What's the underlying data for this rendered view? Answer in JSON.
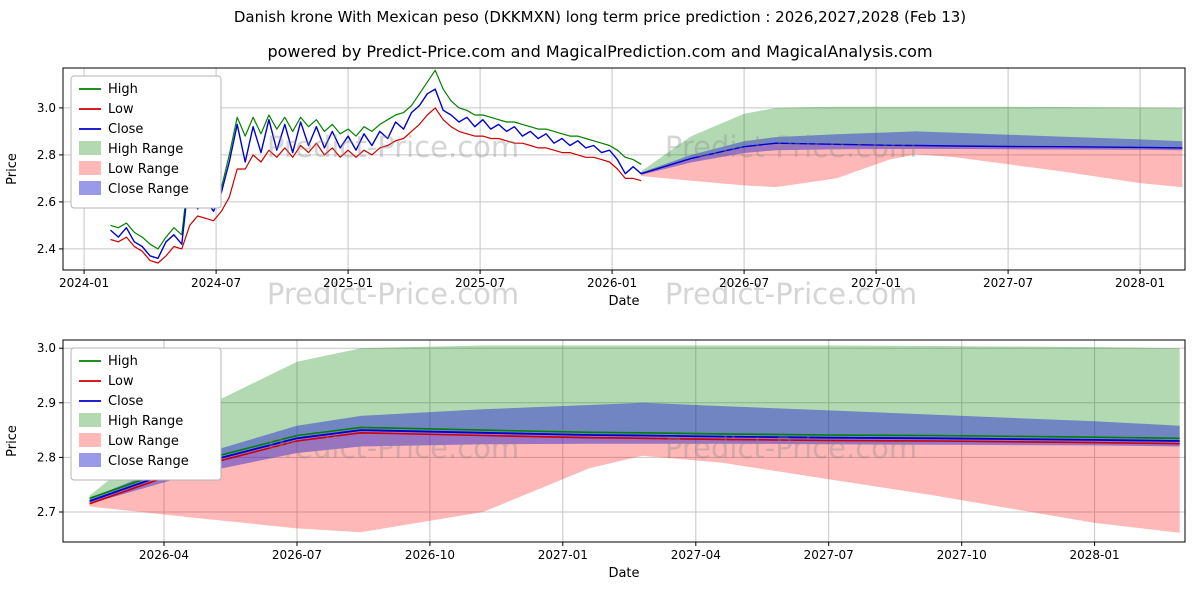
{
  "title": "Danish krone With Mexican peso (DKKMXN) long term price prediction : 2026,2027,2028 (Feb 13)",
  "subtitle": "powered by Predict-Price.com and MagicalPrediction.com and MagicalAnalysis.com",
  "watermark": "Predict-Price.com",
  "colors": {
    "high": "#008000",
    "low": "#cc0000",
    "close": "#0000cc",
    "high_range": "rgba(0,128,0,0.30)",
    "low_range": "rgba(255,0,0,0.28)",
    "close_range": "rgba(30,30,210,0.45)",
    "grid": "#c6c6c6",
    "spine": "#000000",
    "legend_border": "#b5b5b5"
  },
  "chart_data": {
    "type": "line",
    "legend": [
      {
        "label": "High",
        "type": "line",
        "color": "#008000"
      },
      {
        "label": "Low",
        "type": "line",
        "color": "#cc0000"
      },
      {
        "label": "Close",
        "type": "line",
        "color": "#0000cc"
      },
      {
        "label": "High Range",
        "type": "patch",
        "color": "rgba(0,128,0,0.30)"
      },
      {
        "label": "Low Range",
        "type": "patch",
        "color": "rgba(255,0,0,0.28)"
      },
      {
        "label": "Close Range",
        "type": "patch",
        "color": "rgba(30,30,210,0.45)"
      }
    ],
    "history": {
      "columns": [
        "x",
        "high",
        "low",
        "close"
      ],
      "points": [
        [
          2024.1,
          2.5,
          2.44,
          2.48
        ],
        [
          2024.13,
          2.49,
          2.43,
          2.45
        ],
        [
          2024.16,
          2.51,
          2.45,
          2.49
        ],
        [
          2024.19,
          2.47,
          2.41,
          2.43
        ],
        [
          2024.22,
          2.45,
          2.39,
          2.41
        ],
        [
          2024.25,
          2.42,
          2.35,
          2.37
        ],
        [
          2024.28,
          2.4,
          2.34,
          2.36
        ],
        [
          2024.31,
          2.45,
          2.37,
          2.43
        ],
        [
          2024.34,
          2.49,
          2.41,
          2.46
        ],
        [
          2024.37,
          2.46,
          2.4,
          2.42
        ],
        [
          2024.4,
          2.76,
          2.5,
          2.73
        ],
        [
          2024.43,
          2.68,
          2.54,
          2.57
        ],
        [
          2024.46,
          2.63,
          2.53,
          2.61
        ],
        [
          2024.49,
          2.62,
          2.52,
          2.56
        ],
        [
          2024.52,
          2.66,
          2.56,
          2.64
        ],
        [
          2024.55,
          2.8,
          2.62,
          2.77
        ],
        [
          2024.58,
          2.96,
          2.74,
          2.93
        ],
        [
          2024.61,
          2.88,
          2.74,
          2.77
        ],
        [
          2024.64,
          2.96,
          2.8,
          2.92
        ],
        [
          2024.67,
          2.89,
          2.77,
          2.81
        ],
        [
          2024.7,
          2.97,
          2.82,
          2.95
        ],
        [
          2024.73,
          2.91,
          2.79,
          2.82
        ],
        [
          2024.76,
          2.96,
          2.83,
          2.93
        ],
        [
          2024.79,
          2.9,
          2.79,
          2.81
        ],
        [
          2024.82,
          2.96,
          2.84,
          2.94
        ],
        [
          2024.85,
          2.92,
          2.81,
          2.84
        ],
        [
          2024.88,
          2.95,
          2.85,
          2.92
        ],
        [
          2024.91,
          2.9,
          2.8,
          2.83
        ],
        [
          2024.94,
          2.93,
          2.83,
          2.9
        ],
        [
          2024.97,
          2.89,
          2.79,
          2.83
        ],
        [
          2025.0,
          2.91,
          2.82,
          2.88
        ],
        [
          2025.03,
          2.88,
          2.79,
          2.82
        ],
        [
          2025.06,
          2.92,
          2.82,
          2.89
        ],
        [
          2025.09,
          2.9,
          2.8,
          2.84
        ],
        [
          2025.12,
          2.93,
          2.83,
          2.9
        ],
        [
          2025.15,
          2.95,
          2.84,
          2.87
        ],
        [
          2025.18,
          2.97,
          2.86,
          2.94
        ],
        [
          2025.21,
          2.98,
          2.87,
          2.91
        ],
        [
          2025.24,
          3.01,
          2.9,
          2.98
        ],
        [
          2025.27,
          3.06,
          2.93,
          3.01
        ],
        [
          2025.3,
          3.11,
          2.97,
          3.06
        ],
        [
          2025.33,
          3.16,
          3.0,
          3.08
        ],
        [
          2025.36,
          3.08,
          2.95,
          2.99
        ],
        [
          2025.39,
          3.03,
          2.92,
          2.97
        ],
        [
          2025.42,
          3.0,
          2.9,
          2.94
        ],
        [
          2025.45,
          2.99,
          2.89,
          2.96
        ],
        [
          2025.48,
          2.97,
          2.88,
          2.92
        ],
        [
          2025.51,
          2.97,
          2.88,
          2.95
        ],
        [
          2025.54,
          2.96,
          2.87,
          2.91
        ],
        [
          2025.57,
          2.95,
          2.87,
          2.93
        ],
        [
          2025.6,
          2.94,
          2.86,
          2.9
        ],
        [
          2025.63,
          2.94,
          2.85,
          2.92
        ],
        [
          2025.66,
          2.93,
          2.85,
          2.88
        ],
        [
          2025.69,
          2.92,
          2.84,
          2.9
        ],
        [
          2025.72,
          2.91,
          2.83,
          2.87
        ],
        [
          2025.75,
          2.91,
          2.83,
          2.89
        ],
        [
          2025.78,
          2.9,
          2.82,
          2.85
        ],
        [
          2025.81,
          2.89,
          2.81,
          2.87
        ],
        [
          2025.84,
          2.88,
          2.81,
          2.84
        ],
        [
          2025.87,
          2.88,
          2.8,
          2.86
        ],
        [
          2025.9,
          2.87,
          2.79,
          2.83
        ],
        [
          2025.93,
          2.86,
          2.79,
          2.84
        ],
        [
          2025.96,
          2.85,
          2.78,
          2.81
        ],
        [
          2025.99,
          2.84,
          2.77,
          2.82
        ],
        [
          2026.02,
          2.82,
          2.74,
          2.78
        ],
        [
          2026.05,
          2.79,
          2.7,
          2.72
        ],
        [
          2026.08,
          2.78,
          2.7,
          2.75
        ],
        [
          2026.11,
          2.76,
          2.69,
          2.72
        ]
      ]
    },
    "prediction": {
      "x": [
        2026.11,
        2026.3,
        2026.5,
        2026.62,
        2026.85,
        2027.05,
        2027.15,
        2027.3,
        2027.5,
        2027.7,
        2028.0,
        2028.16
      ],
      "high": [
        2.725,
        2.79,
        2.84,
        2.855,
        2.85,
        2.846,
        2.845,
        2.843,
        2.841,
        2.84,
        2.837,
        2.835
      ],
      "low": [
        2.715,
        2.78,
        2.83,
        2.845,
        2.84,
        2.836,
        2.835,
        2.833,
        2.831,
        2.83,
        2.827,
        2.825
      ],
      "close": [
        2.72,
        2.785,
        2.835,
        2.85,
        2.845,
        2.841,
        2.84,
        2.838,
        2.836,
        2.835,
        2.832,
        2.83
      ],
      "close_range_top": [
        2.725,
        2.8,
        2.858,
        2.876,
        2.888,
        2.896,
        2.9,
        2.894,
        2.886,
        2.878,
        2.866,
        2.858
      ],
      "close_range_bottom": [
        2.715,
        2.768,
        2.808,
        2.82,
        2.824,
        2.825,
        2.825,
        2.825,
        2.824,
        2.823,
        2.822,
        2.82
      ],
      "high_range_top": [
        2.73,
        2.88,
        2.975,
        3.0,
        3.005,
        3.005,
        3.005,
        3.005,
        3.005,
        3.004,
        3.002,
        3.0
      ],
      "low_range_bottom": [
        2.71,
        2.69,
        2.67,
        2.663,
        2.7,
        2.78,
        2.803,
        2.79,
        2.76,
        2.73,
        2.68,
        2.662
      ]
    },
    "charts": [
      {
        "id": "top",
        "xlabel": "Date",
        "ylabel": "Price",
        "xlim": [
          2023.92,
          2028.17
        ],
        "ylim": [
          2.31,
          3.17
        ],
        "xticks": [
          {
            "v": 2024.0,
            "label": "2024-01"
          },
          {
            "v": 2024.5,
            "label": "2024-07"
          },
          {
            "v": 2025.0,
            "label": "2025-01"
          },
          {
            "v": 2025.5,
            "label": "2025-07"
          },
          {
            "v": 2026.0,
            "label": "2026-01"
          },
          {
            "v": 2026.5,
            "label": "2026-07"
          },
          {
            "v": 2027.0,
            "label": "2027-01"
          },
          {
            "v": 2027.5,
            "label": "2027-07"
          },
          {
            "v": 2028.0,
            "label": "2028-01"
          }
        ],
        "yticks": [
          {
            "v": 2.4,
            "label": "2.4"
          },
          {
            "v": 2.6,
            "label": "2.6"
          },
          {
            "v": 2.8,
            "label": "2.8"
          },
          {
            "v": 3.0,
            "label": "3.0"
          }
        ]
      },
      {
        "id": "bottom",
        "xlabel": "Date",
        "ylabel": "Price",
        "xlim": [
          2026.06,
          2028.17
        ],
        "ylim": [
          2.645,
          3.015
        ],
        "xticks": [
          {
            "v": 2026.25,
            "label": "2026-04"
          },
          {
            "v": 2026.5,
            "label": "2026-07"
          },
          {
            "v": 2026.75,
            "label": "2026-10"
          },
          {
            "v": 2027.0,
            "label": "2027-01"
          },
          {
            "v": 2027.25,
            "label": "2027-04"
          },
          {
            "v": 2027.5,
            "label": "2027-07"
          },
          {
            "v": 2027.75,
            "label": "2027-10"
          },
          {
            "v": 2028.0,
            "label": "2028-01"
          }
        ],
        "yticks": [
          {
            "v": 2.7,
            "label": "2.7"
          },
          {
            "v": 2.8,
            "label": "2.8"
          },
          {
            "v": 2.9,
            "label": "2.9"
          },
          {
            "v": 3.0,
            "label": "3.0"
          }
        ]
      }
    ]
  }
}
